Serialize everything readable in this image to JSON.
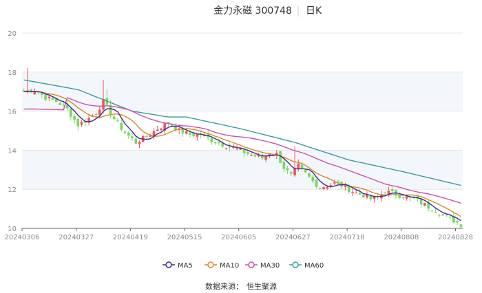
{
  "header": {
    "title": "金力永磁 300748",
    "period": "日K"
  },
  "source": {
    "label": "数据来源：",
    "value": "恒生聚源"
  },
  "colors": {
    "up": "#f2565d",
    "down": "#7ad85b",
    "band": "#f3f6fb",
    "grid": "#e6e6e6",
    "axis": "#666666",
    "ma5": "#3d2b8f",
    "ma10": "#d98a2b",
    "ma30": "#cc4fb0",
    "ma60": "#3d9a9a"
  },
  "legend": [
    {
      "key": "ma5",
      "label": "MA5",
      "color": "#3d2b8f",
      "icon": "circle-line-icon"
    },
    {
      "key": "ma10",
      "label": "MA10",
      "color": "#d98a2b",
      "icon": "circle-line-icon"
    },
    {
      "key": "ma30",
      "label": "MA30",
      "color": "#cc4fb0",
      "icon": "circle-line-icon"
    },
    {
      "key": "ma60",
      "label": "MA60",
      "color": "#3d9a9a",
      "icon": "circle-line-icon"
    }
  ],
  "chart_data": {
    "type": "candlestick",
    "ylim": [
      10,
      20
    ],
    "yticks": [
      10,
      12,
      14,
      16,
      18,
      20
    ],
    "n_bars": 122,
    "xticks": [
      {
        "label": "20240306",
        "index": 0
      },
      {
        "label": "20240327",
        "index": 15
      },
      {
        "label": "20240419",
        "index": 30
      },
      {
        "label": "20240515",
        "index": 45
      },
      {
        "label": "20240605",
        "index": 60
      },
      {
        "label": "20240627",
        "index": 75
      },
      {
        "label": "20240718",
        "index": 90
      },
      {
        "label": "20240808",
        "index": 105
      },
      {
        "label": "20240828",
        "index": 120
      }
    ],
    "close_anchors": [
      [
        0,
        17.0
      ],
      [
        3,
        17.1
      ],
      [
        6,
        16.7
      ],
      [
        9,
        16.5
      ],
      [
        12,
        16.1
      ],
      [
        15,
        15.3
      ],
      [
        17,
        15.5
      ],
      [
        20,
        15.9
      ],
      [
        22,
        16.5
      ],
      [
        25,
        15.6
      ],
      [
        28,
        14.9
      ],
      [
        31,
        14.4
      ],
      [
        34,
        14.7
      ],
      [
        37,
        15.1
      ],
      [
        40,
        15.4
      ],
      [
        43,
        15.0
      ],
      [
        46,
        14.8
      ],
      [
        49,
        14.8
      ],
      [
        52,
        14.5
      ],
      [
        55,
        14.3
      ],
      [
        58,
        14.1
      ],
      [
        61,
        13.9
      ],
      [
        64,
        13.7
      ],
      [
        66,
        13.6
      ],
      [
        68,
        13.9
      ],
      [
        70,
        13.8
      ],
      [
        72,
        13.1
      ],
      [
        74,
        12.7
      ],
      [
        76,
        13.2
      ],
      [
        78,
        12.8
      ],
      [
        80,
        12.4
      ],
      [
        82,
        12.1
      ],
      [
        84,
        12.2
      ],
      [
        86,
        12.3
      ],
      [
        88,
        12.2
      ],
      [
        90,
        12.0
      ],
      [
        92,
        11.8
      ],
      [
        94,
        11.7
      ],
      [
        96,
        11.5
      ],
      [
        98,
        11.6
      ],
      [
        100,
        11.9
      ],
      [
        102,
        11.8
      ],
      [
        104,
        11.7
      ],
      [
        106,
        11.6
      ],
      [
        108,
        11.5
      ],
      [
        110,
        11.3
      ],
      [
        112,
        11.1
      ],
      [
        114,
        10.9
      ],
      [
        116,
        10.7
      ],
      [
        118,
        10.5
      ],
      [
        120,
        10.3
      ],
      [
        121,
        10.2
      ]
    ],
    "spikes": [
      {
        "index": 1,
        "high": 18.2
      },
      {
        "index": 22,
        "high": 17.6
      },
      {
        "index": 23,
        "high": 17.1
      },
      {
        "index": 75,
        "high": 14.2
      }
    ],
    "ma60_anchors": [
      [
        0,
        17.6
      ],
      [
        15,
        17.1
      ],
      [
        30,
        16.0
      ],
      [
        40,
        15.7
      ],
      [
        45,
        15.7
      ],
      [
        60,
        15.1
      ],
      [
        75,
        14.4
      ],
      [
        90,
        13.5
      ],
      [
        105,
        12.9
      ],
      [
        121,
        12.2
      ]
    ]
  }
}
